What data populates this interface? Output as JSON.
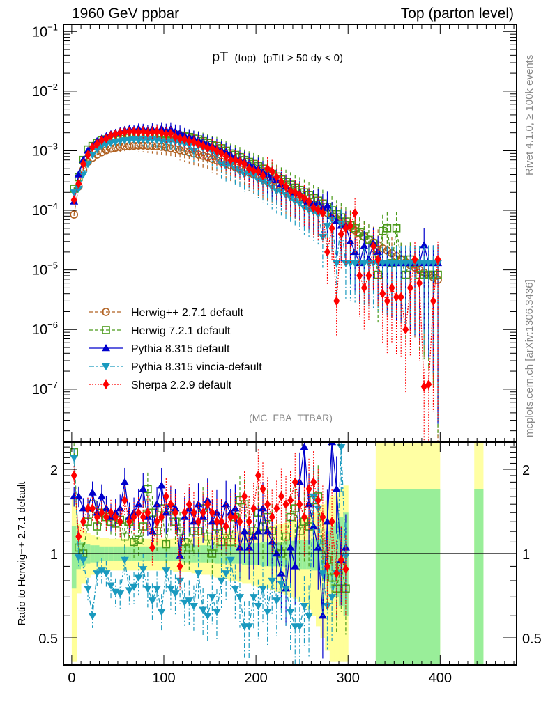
{
  "header": {
    "left_title": "1960 GeV ppbar",
    "right_title": "Top (parton level)"
  },
  "side_labels": {
    "rivet": "Rivet 4.1.0, ≥ 100k events",
    "mcplots": "mcplots.cern.ch [arXiv:1306.3436]"
  },
  "chart_data": [
    {
      "type": "line",
      "panel": "main",
      "title_main": "pT",
      "title_sub": "(top)",
      "title_cut": "(pTtt > 50 dy < 0)",
      "analysis_tag": "(MC_FBA_TTBAR)",
      "xlabel": "",
      "ylabel": "",
      "xlim": [
        -9,
        483
      ],
      "ylim_log10": [
        -7.89,
        -0.88
      ],
      "yscale": "log",
      "x_ticks": [
        0,
        100,
        200,
        300,
        400
      ],
      "y_tick_labels": [
        "10^-1",
        "10^-2",
        "10^-3",
        "10^-4",
        "10^-5",
        "10^-6",
        "10^-7"
      ],
      "y_tick_exponents": [
        -1,
        -2,
        -3,
        -4,
        -5,
        -6,
        -7
      ],
      "legend_position": "bottom-left",
      "x": [
        2.5,
        7.5,
        12.5,
        17.5,
        22.5,
        27.5,
        32.5,
        37.5,
        42.5,
        47.5,
        52.5,
        57.5,
        62.5,
        67.5,
        72.5,
        77.5,
        82.5,
        87.5,
        92.5,
        97.5,
        102.5,
        107.5,
        112.5,
        117.5,
        122.5,
        127.5,
        132.5,
        137.5,
        142.5,
        147.5,
        152.5,
        157.5,
        162.5,
        167.5,
        172.5,
        177.5,
        182.5,
        187.5,
        192.5,
        197.5,
        202.5,
        207.5,
        212.5,
        217.5,
        222.5,
        227.5,
        232.5,
        237.5,
        242.5,
        247.5,
        252.5,
        257.5,
        262.5,
        267.5,
        272.5,
        277.5,
        282.5,
        287.5,
        292.5,
        297.5,
        302.5,
        307.5,
        312.5,
        317.5,
        322.5,
        327.5,
        332.5,
        337.5,
        342.5,
        347.5,
        352.5,
        357.5,
        362.5,
        367.5,
        372.5,
        377.5,
        382.5,
        387.5,
        392.5,
        397.5
      ],
      "series": [
        {
          "name": "Herwig++ 2.7.1 default",
          "color": "#b06020",
          "marker": "open-circle",
          "linestyle": "dashed",
          "values": [
            8.5e-05,
            0.00025,
            0.00048,
            0.00065,
            0.00076,
            0.00086,
            0.00094,
            0.00102,
            0.00108,
            0.00112,
            0.00115,
            0.00118,
            0.0012,
            0.00121,
            0.00122,
            0.00122,
            0.00121,
            0.0012,
            0.00118,
            0.00116,
            0.00113,
            0.0011,
            0.00106,
            0.00102,
            0.00098,
            0.00094,
            0.0009,
            0.00086,
            0.00082,
            0.00078,
            0.00073,
            0.00069,
            0.00065,
            0.00061,
            0.00057,
            0.00053,
            0.00049,
            0.00046,
            0.00043,
            0.0004,
            0.00037,
            0.00034,
            0.00031,
            0.00029,
            0.00026,
            0.00024,
            0.00022,
            0.0002,
            0.00018,
            0.000165,
            0.00015,
            0.000135,
            0.00012,
            0.00011,
            0.0001,
            9e-05,
            8e-05,
            7.2e-05,
            6.5e-05,
            5.8e-05,
            5.2e-05,
            4.6e-05,
            4.1e-05,
            3.6e-05,
            3.2e-05,
            2.9e-05,
            2.6e-05,
            2.3e-05,
            2.1e-05,
            1.9e-05,
            1.7e-05,
            1.5e-05,
            1.35e-05,
            1.2e-05,
            1.1e-05,
            1e-05,
            9e-06,
            8.2e-06,
            7.5e-06,
            6.8e-06
          ]
        },
        {
          "name": "Herwig 7.2.1 default",
          "color": "#4a9a1a",
          "marker": "open-square",
          "linestyle": "dashed",
          "values": [
            0.00023,
            0.00036,
            0.0007,
            0.00105,
            0.0012,
            0.00135,
            0.0015,
            0.00155,
            0.00165,
            0.0017,
            0.00175,
            0.00185,
            0.0019,
            0.00195,
            0.002,
            0.00195,
            0.002,
            0.002,
            0.00195,
            0.0019,
            0.00195,
            0.0019,
            0.00185,
            0.0018,
            0.00175,
            0.0017,
            0.0016,
            0.00155,
            0.00145,
            0.00135,
            0.00125,
            0.0012,
            0.0011,
            0.001,
            0.0009,
            0.00085,
            0.00078,
            0.0007,
            0.00065,
            0.0006,
            0.00055,
            0.0005,
            0.00045,
            0.00041,
            0.00037,
            0.00033,
            0.0003,
            0.00027,
            0.00024,
            0.00022,
            0.0002,
            0.00018,
            0.00016,
            0.000145,
            0.00013,
            0.000115,
            0.0001,
            8.6e-05,
            7.6e-05,
            6.5e-05,
            5.6e-05,
            5e-05,
            4.3e-05,
            3.7e-05,
            3.2e-05,
            2.8e-05,
            8.3e-06,
            4.5e-05,
            5e-05,
            1.3e-05,
            5e-05,
            1.5e-05,
            8.3e-06,
            1.5e-05,
            1.3e-05,
            8.3e-06,
            8.3e-06,
            8.3e-06,
            8.3e-06,
            8.3e-06
          ]
        },
        {
          "name": "Pythia 8.315 default",
          "color": "#0000cc",
          "marker": "filled-triangle-up",
          "linestyle": "solid",
          "values": [
            0.00014,
            0.0004,
            0.0007,
            0.001,
            0.0012,
            0.00145,
            0.0016,
            0.00175,
            0.0019,
            0.002,
            0.0021,
            0.0022,
            0.0023,
            0.00225,
            0.00235,
            0.0023,
            0.0022,
            0.0023,
            0.0022,
            0.00235,
            0.0022,
            0.0023,
            0.0021,
            0.002,
            0.0018,
            0.0017,
            0.0016,
            0.0015,
            0.0014,
            0.0013,
            0.0012,
            0.0011,
            0.001,
            0.00095,
            0.00085,
            0.00075,
            0.0007,
            0.00065,
            0.0006,
            0.00053,
            0.0005,
            0.00044,
            0.0004,
            0.00035,
            0.00032,
            0.00028,
            0.00025,
            0.00022,
            0.0002,
            0.00019,
            0.00015,
            0.00014,
            0.00013,
            0.000135,
            0.00011,
            0.00012,
            8e-05,
            6.6e-05,
            5.5e-05,
            5.5e-05,
            3e-05,
            2e-05,
            1.3e-05,
            2.5e-05,
            1.5e-05,
            2.8e-05,
            2e-05,
            1.3e-05,
            1.3e-05,
            1.3e-05,
            1.3e-05,
            1.3e-05,
            1.3e-05,
            1.3e-05,
            1.3e-05,
            1.3e-05,
            2.6e-05,
            1.3e-05,
            1.3e-05,
            1.3e-05
          ]
        },
        {
          "name": "Pythia 8.315 vincia-default",
          "color": "#1a9abf",
          "marker": "filled-triangle-down",
          "linestyle": "dash-dot",
          "values": [
            0.0002,
            0.00023,
            0.0004,
            0.0006,
            0.00085,
            0.00105,
            0.0012,
            0.0013,
            0.00135,
            0.0014,
            0.00145,
            0.0015,
            0.0015,
            0.00155,
            0.0015,
            0.00155,
            0.0015,
            0.00155,
            0.0015,
            0.00145,
            0.0014,
            0.00145,
            0.0014,
            0.00135,
            0.0013,
            0.00125,
            0.001,
            0.0012,
            0.0011,
            0.00105,
            0.00095,
            0.00085,
            0.0006,
            0.00055,
            0.0006,
            0.0005,
            0.00045,
            0.0004,
            0.00042,
            0.00038,
            0.00032,
            0.0003,
            0.00028,
            0.00024,
            0.00021,
            0.0002,
            0.00018,
            0.00016,
            0.00014,
            0.00013,
            0.00011,
            0.0001,
            9.5e-05,
            8.5e-05,
            3.6e-05,
            5.5e-05,
            7e-05,
            1.3e-05,
            6e-05,
            1.3e-05,
            1.3e-05,
            1.3e-05,
            1.3e-05,
            1.3e-05,
            1.3e-05,
            1.3e-05,
            1.3e-05,
            1.3e-05,
            1.3e-05,
            1.3e-05,
            1.3e-05,
            1.3e-05,
            1.3e-05,
            1.3e-05,
            1.3e-05,
            1.3e-05,
            1.3e-05,
            1.3e-05,
            1.3e-05,
            1.3e-05
          ]
        },
        {
          "name": "Sherpa 2.2.9 default",
          "color": "#ff0000",
          "marker": "filled-diamond",
          "linestyle": "dotted",
          "values": [
            0.00015,
            0.00028,
            0.0006,
            0.00085,
            0.00115,
            0.0013,
            0.0015,
            0.0016,
            0.0018,
            0.0019,
            0.002,
            0.00205,
            0.0021,
            0.0021,
            0.00205,
            0.0021,
            0.002,
            0.00205,
            0.0021,
            0.002,
            0.0019,
            0.00195,
            0.0017,
            0.0016,
            0.00155,
            0.00145,
            0.0014,
            0.0013,
            0.0012,
            0.0011,
            0.0011,
            0.001,
            0.0009,
            0.0008,
            0.0007,
            0.0007,
            0.00065,
            0.0006,
            0.0005,
            0.00046,
            0.00045,
            0.00038,
            0.0005,
            0.00045,
            0.00036,
            0.0003,
            0.00025,
            0.00021,
            0.0002,
            0.00018,
            0.00016,
            0.00014,
            0.00011,
            0.0001,
            9e-05,
            2e-05,
            5e-05,
            3e-06,
            4e-05,
            5e-05,
            5.5e-05,
            9e-05,
            8e-06,
            5e-06,
            8e-06,
            2.5e-05,
            1.5e-05,
            4e-06,
            3e-06,
            5e-06,
            3.5e-06,
            3.5e-06,
            1e-06,
            5e-06,
            1.5e-05,
            6e-06,
            1.1e-07,
            1.2e-07,
            3e-06,
            1.5e-05
          ]
        }
      ]
    },
    {
      "type": "line",
      "panel": "ratio",
      "ylabel": "Ratio to Herwig++ 2.7.1 default",
      "xlabel": "",
      "xlim": [
        -9,
        483
      ],
      "ylim": [
        0.4,
        2.5
      ],
      "yscale": "log",
      "y_tick_labels": [
        "0.5",
        "1",
        "2"
      ],
      "y_tick_values": [
        0.5,
        1,
        2
      ],
      "x_tick_labels": [
        "0",
        "100",
        "200",
        "300",
        "400"
      ],
      "x": [
        2.5,
        7.5,
        12.5,
        17.5,
        22.5,
        27.5,
        32.5,
        37.5,
        42.5,
        47.5,
        52.5,
        57.5,
        62.5,
        67.5,
        72.5,
        77.5,
        82.5,
        87.5,
        92.5,
        97.5,
        102.5,
        107.5,
        112.5,
        117.5,
        122.5,
        127.5,
        132.5,
        137.5,
        142.5,
        147.5,
        152.5,
        157.5,
        162.5,
        167.5,
        172.5,
        177.5,
        182.5,
        187.5,
        192.5,
        197.5,
        202.5,
        207.5,
        212.5,
        217.5,
        222.5,
        227.5,
        232.5,
        237.5,
        242.5,
        247.5,
        252.5,
        257.5,
        262.5,
        267.5,
        272.5,
        277.5,
        282.5,
        287.5,
        292.5,
        297.5
      ],
      "band_inner_rel": [
        0.25,
        0.12,
        0.1,
        0.08,
        0.07,
        0.07,
        0.06,
        0.06,
        0.06,
        0.06,
        0.06,
        0.06,
        0.06,
        0.06,
        0.06,
        0.06,
        0.06,
        0.06,
        0.06,
        0.06,
        0.06,
        0.06,
        0.06,
        0.06,
        0.07,
        0.07,
        0.07,
        0.07,
        0.07,
        0.07,
        0.07,
        0.08,
        0.08,
        0.08,
        0.08,
        0.08,
        0.08,
        0.09,
        0.09,
        0.09,
        0.09,
        0.1,
        0.1,
        0.1,
        0.1,
        0.1,
        0.11,
        0.11,
        0.11,
        0.12,
        0.12,
        0.12,
        0.13,
        0.13,
        0.14,
        0.2,
        0.25,
        0.3,
        0.35,
        0.4
      ],
      "band_outer_rel": [
        0.6,
        0.28,
        0.22,
        0.18,
        0.16,
        0.15,
        0.14,
        0.14,
        0.13,
        0.13,
        0.13,
        0.13,
        0.13,
        0.13,
        0.13,
        0.13,
        0.13,
        0.13,
        0.13,
        0.13,
        0.13,
        0.13,
        0.14,
        0.14,
        0.14,
        0.14,
        0.15,
        0.15,
        0.16,
        0.16,
        0.17,
        0.18,
        0.18,
        0.19,
        0.2,
        0.2,
        0.21,
        0.22,
        0.22,
        0.23,
        0.24,
        0.25,
        0.25,
        0.26,
        0.27,
        0.28,
        0.29,
        0.3,
        0.31,
        0.33,
        0.35,
        0.37,
        0.4,
        0.45,
        0.5,
        0.55,
        0.6,
        0.65,
        0.7,
        0.75
      ],
      "series": [
        {
          "name": "Herwig 7.2.1 default",
          "color": "#4a9a1a",
          "values": [
            2.3,
            1.05,
            1.0,
            1.3,
            1.5,
            1.25,
            1.4,
            1.35,
            1.3,
            1.28,
            1.32,
            1.15,
            1.3,
            1.1,
            1.12,
            1.25,
            1.7,
            1.4,
            1.2,
            1.45,
            1.08,
            1.45,
            1.3,
            1.2,
            1.1,
            1.05,
            1.2,
            1.2,
            1.45,
            1.15,
            1.0,
            1.25,
            1.1,
            1.2,
            1.1,
            1.35,
            1.55,
            1.5,
            1.15,
            1.2,
            1.4,
            1.25,
            1.35,
            1.2,
            1.05,
            1.0,
            1.15,
            1.35,
            1.45,
            1.2,
            1.3,
            1.25,
            1.55,
            1.6,
            1.05,
            0.95,
            0.82,
            0.75,
            0.9,
            0.75
          ]
        },
        {
          "name": "Pythia 8.315 default",
          "color": "#0000cc",
          "values": [
            1.6,
            1.6,
            1.45,
            1.45,
            1.65,
            1.4,
            1.6,
            1.45,
            1.35,
            1.4,
            1.45,
            1.8,
            1.35,
            1.4,
            1.5,
            1.7,
            1.35,
            1.2,
            1.5,
            1.75,
            1.4,
            1.5,
            1.45,
            0.98,
            1.35,
            1.45,
            1.3,
            1.5,
            1.35,
            1.55,
            1.3,
            1.4,
            1.3,
            1.5,
            1.4,
            1.45,
            1.05,
            1.2,
            1.05,
            1.15,
            1.2,
            1.45,
            1.2,
            1.1,
            1.0,
            0.85,
            0.75,
            1.05,
            0.9,
            1.8,
            2.4,
            1.5,
            1.25,
            1.05,
            0.6,
            1.3,
            2.5,
            1.7,
            0.95,
            1.05
          ]
        },
        {
          "name": "Pythia 8.315 vincia-default",
          "color": "#1a9abf",
          "values": [
            2.2,
            0.97,
            0.95,
            0.75,
            0.6,
            0.85,
            0.87,
            0.85,
            0.77,
            0.73,
            0.72,
            0.95,
            0.74,
            0.76,
            0.82,
            0.88,
            0.75,
            0.68,
            0.75,
            0.62,
            0.87,
            0.75,
            0.72,
            0.8,
            0.67,
            0.68,
            0.65,
            0.85,
            0.63,
            0.6,
            0.7,
            0.62,
            0.8,
            0.85,
            0.95,
            0.75,
            0.7,
            0.55,
            0.55,
            0.7,
            0.65,
            0.75,
            0.62,
            0.8,
            0.68,
            0.78,
            0.75,
            0.62,
            0.55,
            0.55,
            0.65,
            0.6,
            1.6,
            1.45,
            0.85,
            0.65,
            0.7,
            0.85,
            2.4,
            0.98
          ]
        },
        {
          "name": "Sherpa 2.2.9 default",
          "color": "#ff0000",
          "values": [
            1.9,
            1.15,
            1.3,
            1.45,
            1.45,
            1.35,
            1.4,
            1.35,
            1.4,
            1.35,
            1.3,
            1.55,
            1.3,
            1.35,
            1.4,
            1.35,
            1.4,
            1.05,
            1.3,
            1.35,
            1.6,
            1.5,
            1.4,
            0.9,
            1.4,
            1.5,
            1.4,
            1.3,
            1.4,
            1.5,
            1.4,
            1.3,
            1.3,
            1.25,
            1.35,
            1.35,
            1.3,
            1.6,
            1.3,
            1.45,
            1.9,
            1.7,
            1.5,
            1.35,
            1.45,
            1.6,
            1.5,
            1.55,
            1.8,
            1.5,
            1.35,
            1.7,
            1.8,
            1.55,
            1.35,
            0.9,
            1.3,
            0.85,
            0.95,
            0.88
          ]
        }
      ]
    }
  ]
}
